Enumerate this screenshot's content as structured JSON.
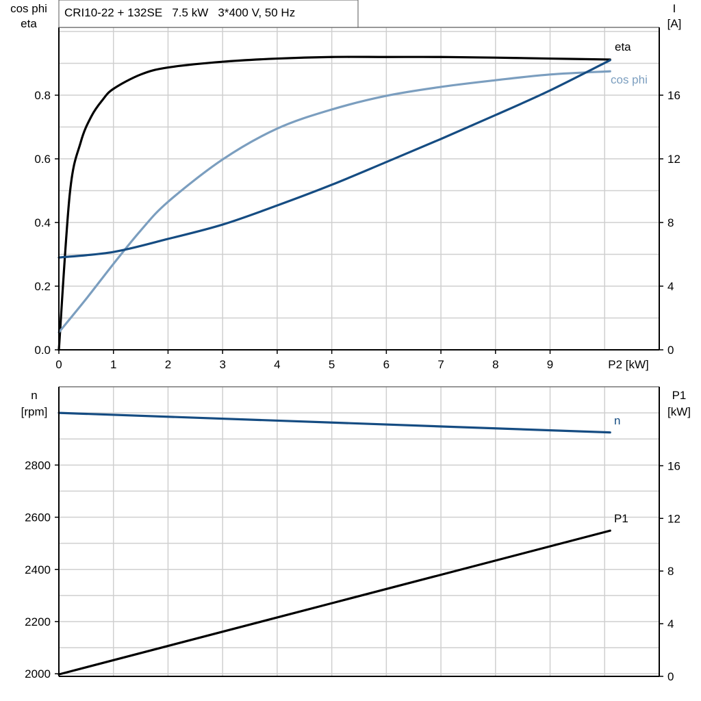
{
  "chart_data": [
    {
      "type": "line",
      "title": "CRI10-22 + 132SE   7.5 kW   3*400 V, 50 Hz",
      "xlabel": "P2 [kW]",
      "ylabel_left": [
        "cos phi",
        "eta"
      ],
      "ylabel_right": [
        "I",
        "[A]"
      ],
      "xlim": [
        0,
        11
      ],
      "ylim_left": [
        0,
        1.013
      ],
      "ylim_right": [
        0,
        20.26
      ],
      "x_ticks": [
        0,
        1,
        2,
        3,
        4,
        5,
        6,
        7,
        8,
        9
      ],
      "y_left_ticks": [
        "0.0",
        "0.2",
        "0.4",
        "0.6",
        "0.8"
      ],
      "y_right_ticks": [
        "0",
        "4",
        "8",
        "12",
        "16"
      ],
      "grid": true,
      "series": [
        {
          "name": "eta",
          "axis": "left",
          "color": "#000000",
          "x": [
            0,
            0.2,
            0.4,
            0.6,
            0.8,
            1.0,
            1.5,
            2,
            3,
            4,
            5,
            6,
            7,
            8,
            9,
            10.1
          ],
          "y": [
            0,
            0.49,
            0.652,
            0.735,
            0.785,
            0.82,
            0.865,
            0.887,
            0.905,
            0.915,
            0.92,
            0.92,
            0.92,
            0.918,
            0.915,
            0.912
          ]
        },
        {
          "name": "cos phi",
          "axis": "left",
          "color": "#7b9ebf",
          "x": [
            0,
            0.5,
            1,
            1.5,
            2,
            3,
            4,
            5,
            6,
            7,
            8,
            9,
            10.1
          ],
          "y": [
            0.055,
            0.16,
            0.27,
            0.375,
            0.465,
            0.598,
            0.695,
            0.755,
            0.798,
            0.826,
            0.847,
            0.865,
            0.875
          ]
        },
        {
          "name": "I",
          "axis": "right",
          "color": "#154c82",
          "x": [
            0,
            1,
            2,
            3,
            4,
            5,
            6,
            7,
            8,
            9,
            10.1
          ],
          "y": [
            5.8,
            6.15,
            6.97,
            7.87,
            9.07,
            10.37,
            11.8,
            13.25,
            14.75,
            16.3,
            18.2
          ]
        }
      ]
    },
    {
      "type": "line",
      "xlim": [
        0,
        11
      ],
      "ylabel_left": [
        "n",
        "[rpm]"
      ],
      "ylabel_right": [
        "P1",
        "[kW]"
      ],
      "ylim_left": [
        1990,
        3100
      ],
      "ylim_right": [
        0,
        22
      ],
      "y_left_ticks": [
        "2000",
        "2200",
        "2400",
        "2600",
        "2800"
      ],
      "y_right_ticks": [
        "0",
        "4",
        "8",
        "12",
        "16"
      ],
      "grid": true,
      "series": [
        {
          "name": "n",
          "axis": "left",
          "color": "#154c82",
          "x": [
            0,
            10.1
          ],
          "y": [
            3000,
            2925
          ]
        },
        {
          "name": "P1",
          "axis": "right",
          "color": "#000000",
          "x": [
            0,
            10.1
          ],
          "y": [
            0.15,
            11.07
          ]
        }
      ]
    }
  ]
}
